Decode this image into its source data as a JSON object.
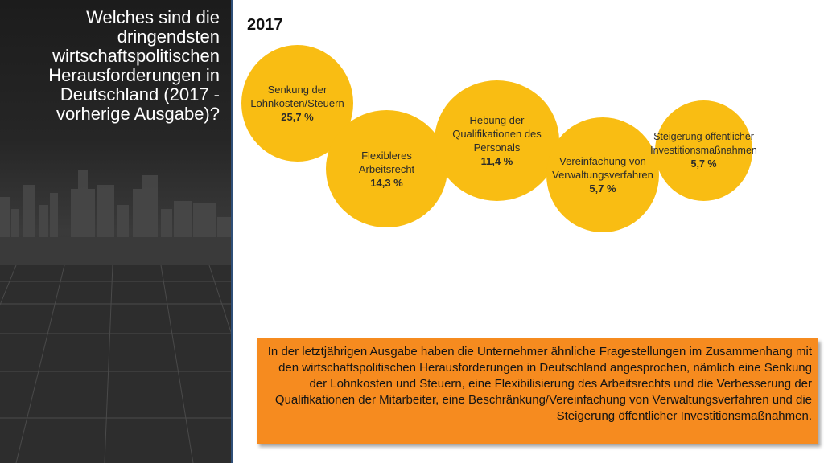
{
  "panel": {
    "title": "Welches sind die dringendsten wirtschaftspolitischen Herausforderungen in Deutschland (2017 - vorherige Ausgabe)?"
  },
  "year": "2017",
  "bubbles": [
    {
      "label": "Senkung der Lohnkosten/Steuern",
      "value": "25,7 %"
    },
    {
      "label": "Flexibleres Arbeitsrecht",
      "value": "14,3 %"
    },
    {
      "label": "Hebung der Qualifikationen des Personals",
      "value": "11,4 %"
    },
    {
      "label": "Vereinfachung von Verwaltungsverfahren",
      "value": "5,7 %"
    },
    {
      "label": "Steigerung öffentlicher Investitionsmaßnahmen",
      "value": "5,7 %"
    }
  ],
  "note": "In der letztjährigen Ausgabe haben die Unternehmer ähnliche Fragestellungen im Zusammenhang mit den wirtschaftspolitischen Herausforderungen in Deutschland angesprochen, nämlich eine Senkung der Lohnkosten und Steuern, eine Flexibilisierung des Arbeitsrechts und die Verbesserung der Qualifikationen der Mitarbeiter, eine Beschränkung/Vereinfachung von Verwaltungsverfahren und die Steigerung öffentlicher Investitionsmaßnahmen.",
  "colors": {
    "bubble": "#f9bd13",
    "note_box": "#f68b1f",
    "panel_divider": "#2f4f78"
  }
}
